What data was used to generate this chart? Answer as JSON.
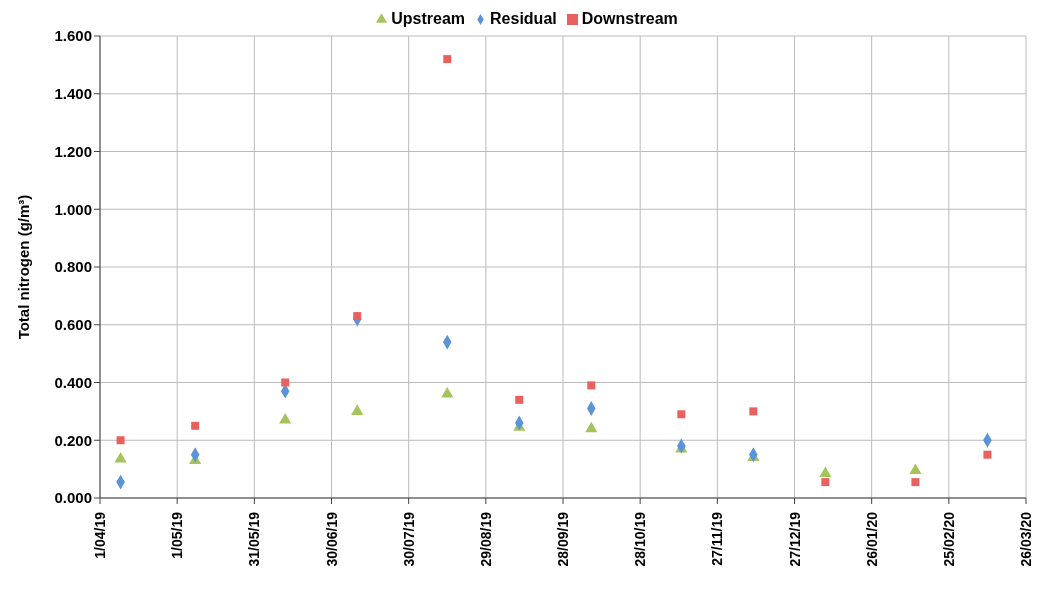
{
  "chart_data": {
    "type": "scatter",
    "ylabel": "Total nitrogen (g/m³)",
    "x": [
      "2019-04-09",
      "2019-05-08",
      "2019-06-12",
      "2019-07-10",
      "2019-08-14",
      "2019-09-11",
      "2019-10-09",
      "2019-11-13",
      "2019-12-11",
      "2020-01-08",
      "2020-02-12",
      "2020-03-11"
    ],
    "series": [
      {
        "name": "Upstream",
        "color": "#a6c45c",
        "marker": "triangle",
        "values": [
          0.135,
          0.13,
          0.27,
          0.3,
          0.36,
          0.245,
          0.24,
          0.17,
          0.14,
          0.085,
          0.095,
          null
        ]
      },
      {
        "name": "Residual",
        "color": "#5b93d8",
        "marker": "diamond",
        "values": [
          0.055,
          0.15,
          0.37,
          0.62,
          0.54,
          0.26,
          0.31,
          0.18,
          0.15,
          null,
          null,
          0.2
        ]
      },
      {
        "name": "Downstream",
        "color": "#e8615f",
        "marker": "square",
        "values": [
          0.2,
          0.25,
          0.4,
          0.63,
          1.52,
          0.34,
          0.39,
          0.29,
          0.3,
          0.055,
          0.055,
          0.15
        ]
      }
    ],
    "xlim": [
      "2019-04-01",
      "2020-03-26"
    ],
    "xticks": [
      {
        "value": "2019-04-01",
        "label": "1/04/19"
      },
      {
        "value": "2019-05-01",
        "label": "1/05/19"
      },
      {
        "value": "2019-05-31",
        "label": "31/05/19"
      },
      {
        "value": "2019-06-30",
        "label": "30/06/19"
      },
      {
        "value": "2019-07-30",
        "label": "30/07/19"
      },
      {
        "value": "2019-08-29",
        "label": "29/08/19"
      },
      {
        "value": "2019-09-28",
        "label": "28/09/19"
      },
      {
        "value": "2019-10-28",
        "label": "28/10/19"
      },
      {
        "value": "2019-11-27",
        "label": "27/11/19"
      },
      {
        "value": "2019-12-27",
        "label": "27/12/19"
      },
      {
        "value": "2020-01-26",
        "label": "26/01/20"
      },
      {
        "value": "2020-02-25",
        "label": "25/02/20"
      },
      {
        "value": "2020-03-26",
        "label": "26/03/20"
      }
    ],
    "ylim": [
      0,
      1.6
    ],
    "yticks": [
      {
        "value": 0,
        "label": "0.000"
      },
      {
        "value": 0.2,
        "label": "0.200"
      },
      {
        "value": 0.4,
        "label": "0.400"
      },
      {
        "value": 0.6,
        "label": "0.600"
      },
      {
        "value": 0.8,
        "label": "0.800"
      },
      {
        "value": 1.0,
        "label": "1.000"
      },
      {
        "value": 1.2,
        "label": "1.200"
      },
      {
        "value": 1.4,
        "label": "1.400"
      },
      {
        "value": 1.6,
        "label": "1.600"
      }
    ],
    "grid": true,
    "legend": "top"
  }
}
